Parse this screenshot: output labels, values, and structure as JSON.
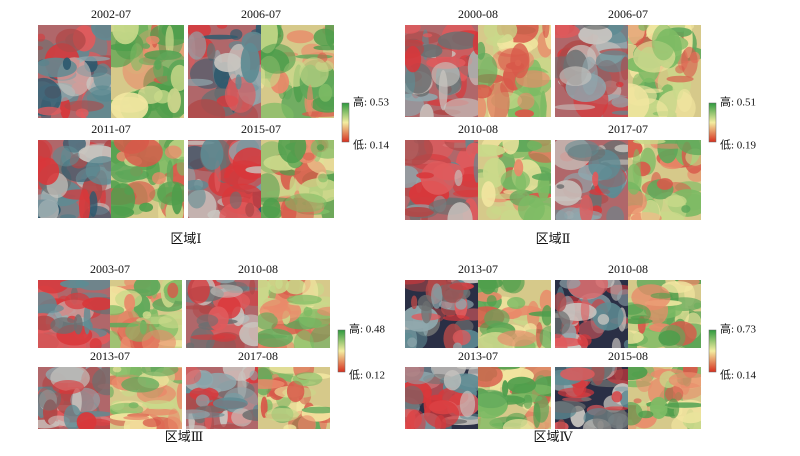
{
  "panels": [
    {
      "title": "区域Ⅰ",
      "dates": [
        "2002-07",
        "2006-07",
        "2011-07",
        "2015-07"
      ],
      "legend": {
        "high": "高: 0.53",
        "low": "低: 0.14"
      }
    },
    {
      "title": "区域Ⅱ",
      "dates": [
        "2000-08",
        "2006-07",
        "2010-08",
        "2017-07"
      ],
      "legend": {
        "high": "高: 0.51",
        "low": "低: 0.19"
      }
    },
    {
      "title": "区域Ⅲ",
      "dates": [
        "2003-07",
        "2010-08",
        "2013-07",
        "2017-08"
      ],
      "legend": {
        "high": "高: 0.48",
        "low": "低: 0.12"
      }
    },
    {
      "title": "区域Ⅳ",
      "dates": [
        "2013-07",
        "2010-08",
        "2013-07",
        "2015-08"
      ],
      "legend": {
        "high": "高: 0.73",
        "low": "低: 0.14"
      }
    }
  ]
}
